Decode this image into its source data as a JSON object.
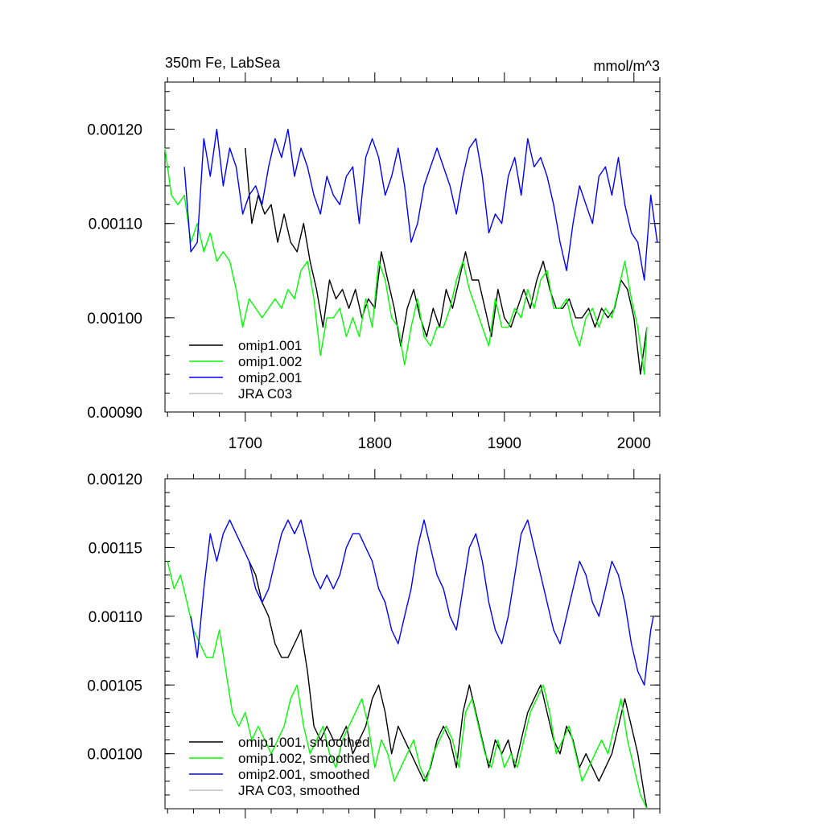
{
  "chart_data": [
    {
      "type": "line",
      "title": "350m Fe, LabSea",
      "units": "mmol/m^3",
      "xlim": [
        1638,
        2020
      ],
      "ylim": [
        0.0009,
        0.00125
      ],
      "yticks": [
        0.0009,
        0.001,
        0.0011,
        0.0012
      ],
      "yticklabels": [
        "0.00090",
        "0.00100",
        "0.00110",
        "0.00120"
      ],
      "xticks": [
        1700,
        1800,
        1900,
        2000
      ],
      "xticklabels": [
        "1700",
        "1800",
        "1900",
        "2000"
      ],
      "legend_position": "bottom-left",
      "series": [
        {
          "name": "omip1.001",
          "color": "#000000",
          "x": [
            1700,
            1705,
            1710,
            1715,
            1720,
            1725,
            1730,
            1735,
            1740,
            1745,
            1750,
            1755,
            1760,
            1765,
            1770,
            1775,
            1780,
            1785,
            1790,
            1795,
            1800,
            1805,
            1810,
            1815,
            1820,
            1825,
            1830,
            1835,
            1840,
            1845,
            1850,
            1855,
            1860,
            1865,
            1870,
            1875,
            1880,
            1885,
            1890,
            1895,
            1900,
            1905,
            1910,
            1915,
            1920,
            1925,
            1930,
            1935,
            1940,
            1945,
            1950,
            1955,
            1960,
            1965,
            1970,
            1975,
            1980,
            1985,
            1990,
            1995,
            2000,
            2005,
            2010
          ],
          "y": [
            0.00118,
            0.0011,
            0.00113,
            0.00111,
            0.00112,
            0.00108,
            0.00111,
            0.00108,
            0.00107,
            0.0011,
            0.00106,
            0.00103,
            0.00099,
            0.00104,
            0.00102,
            0.00103,
            0.00101,
            0.00103,
            0.001,
            0.00102,
            0.00101,
            0.00107,
            0.00104,
            0.00101,
            0.00097,
            0.00101,
            0.00103,
            0.001,
            0.00098,
            0.00101,
            0.00099,
            0.00103,
            0.00101,
            0.00104,
            0.00107,
            0.00104,
            0.00104,
            0.00101,
            0.00098,
            0.00103,
            0.001,
            0.00099,
            0.00101,
            0.00103,
            0.00101,
            0.00104,
            0.00106,
            0.00103,
            0.00101,
            0.00101,
            0.00102,
            0.001,
            0.001,
            0.00101,
            0.00099,
            0.00101,
            0.001,
            0.00101,
            0.00104,
            0.00103,
            0.001,
            0.00094,
            0.00099
          ]
        },
        {
          "name": "omip1.002",
          "color": "#00ff00",
          "x": [
            1638,
            1643,
            1648,
            1653,
            1658,
            1663,
            1668,
            1673,
            1678,
            1683,
            1688,
            1693,
            1698,
            1703,
            1708,
            1713,
            1718,
            1723,
            1728,
            1733,
            1738,
            1743,
            1748,
            1753,
            1758,
            1763,
            1768,
            1773,
            1778,
            1783,
            1788,
            1793,
            1798,
            1803,
            1808,
            1813,
            1818,
            1823,
            1828,
            1833,
            1838,
            1843,
            1848,
            1853,
            1858,
            1863,
            1868,
            1873,
            1878,
            1883,
            1888,
            1893,
            1898,
            1903,
            1908,
            1913,
            1918,
            1923,
            1928,
            1933,
            1938,
            1943,
            1948,
            1953,
            1958,
            1963,
            1968,
            1973,
            1978,
            1983,
            1988,
            1993,
            1998,
            2003,
            2008,
            2010
          ],
          "y": [
            0.00118,
            0.00113,
            0.00112,
            0.00113,
            0.00108,
            0.0011,
            0.00107,
            0.00109,
            0.00106,
            0.00107,
            0.00106,
            0.00103,
            0.00099,
            0.00102,
            0.00101,
            0.001,
            0.00101,
            0.00102,
            0.00101,
            0.00103,
            0.00102,
            0.00105,
            0.00106,
            0.00102,
            0.00096,
            0.001,
            0.001,
            0.00101,
            0.00098,
            0.001,
            0.00098,
            0.00102,
            0.00099,
            0.00106,
            0.00104,
            0.001,
            0.00099,
            0.00095,
            0.00099,
            0.00102,
            0.00098,
            0.00097,
            0.00099,
            0.00099,
            0.00101,
            0.00104,
            0.00106,
            0.00103,
            0.00101,
            0.00099,
            0.00097,
            0.00102,
            0.00099,
            0.00099,
            0.00101,
            0.001,
            0.00103,
            0.00101,
            0.00104,
            0.00105,
            0.00101,
            0.00101,
            0.00102,
            0.00099,
            0.00097,
            0.001,
            0.00101,
            0.00099,
            0.00101,
            0.001,
            0.00103,
            0.00106,
            0.00102,
            0.00099,
            0.00094,
            0.00099
          ]
        },
        {
          "name": "omip2.001",
          "color": "#0000ff",
          "x": [
            1653,
            1658,
            1663,
            1668,
            1673,
            1678,
            1683,
            1688,
            1693,
            1698,
            1703,
            1708,
            1713,
            1718,
            1723,
            1728,
            1733,
            1738,
            1743,
            1748,
            1753,
            1758,
            1763,
            1768,
            1773,
            1778,
            1783,
            1788,
            1793,
            1798,
            1803,
            1808,
            1813,
            1818,
            1823,
            1828,
            1833,
            1838,
            1843,
            1848,
            1853,
            1858,
            1863,
            1868,
            1873,
            1878,
            1883,
            1888,
            1893,
            1898,
            1903,
            1908,
            1913,
            1918,
            1923,
            1928,
            1933,
            1938,
            1943,
            1948,
            1953,
            1958,
            1963,
            1968,
            1973,
            1978,
            1983,
            1988,
            1993,
            1998,
            2003,
            2008,
            2013,
            2018
          ],
          "y": [
            0.00116,
            0.00107,
            0.00108,
            0.00119,
            0.00115,
            0.0012,
            0.00114,
            0.00118,
            0.00116,
            0.00111,
            0.00113,
            0.00114,
            0.00112,
            0.00116,
            0.00119,
            0.00117,
            0.0012,
            0.00115,
            0.00118,
            0.00116,
            0.00113,
            0.00111,
            0.00115,
            0.00113,
            0.00112,
            0.00115,
            0.00116,
            0.0011,
            0.00117,
            0.00119,
            0.00117,
            0.00113,
            0.00115,
            0.00118,
            0.00114,
            0.00108,
            0.0011,
            0.00114,
            0.00116,
            0.00118,
            0.00116,
            0.00114,
            0.00111,
            0.00115,
            0.00118,
            0.00119,
            0.00115,
            0.00109,
            0.00111,
            0.0011,
            0.00115,
            0.00117,
            0.00113,
            0.00119,
            0.00116,
            0.00117,
            0.00115,
            0.00112,
            0.00108,
            0.00105,
            0.0011,
            0.00114,
            0.00112,
            0.0011,
            0.00115,
            0.00116,
            0.00113,
            0.00117,
            0.00112,
            0.00109,
            0.00108,
            0.00104,
            0.00113,
            0.00108
          ]
        },
        {
          "name": "JRA C03",
          "color": "#c0c0c0",
          "x": [],
          "y": []
        }
      ]
    },
    {
      "type": "line",
      "xlim": [
        1638,
        2020
      ],
      "ylim": [
        0.00096,
        0.0012
      ],
      "yticks": [
        0.001,
        0.00105,
        0.0011,
        0.00115,
        0.0012
      ],
      "yticklabels": [
        "0.00100",
        "0.00105",
        "0.00110",
        "0.00115",
        "0.00120"
      ],
      "xticks": [
        1700,
        1800,
        1900,
        2000
      ],
      "xticklabels": [],
      "legend_position": "bottom-left",
      "series": [
        {
          "name": "omip1.001, smoothed",
          "color": "#000000",
          "x": [
            1703,
            1708,
            1713,
            1718,
            1723,
            1728,
            1733,
            1738,
            1743,
            1748,
            1753,
            1758,
            1763,
            1768,
            1773,
            1778,
            1783,
            1788,
            1793,
            1798,
            1803,
            1808,
            1813,
            1818,
            1823,
            1828,
            1833,
            1838,
            1843,
            1848,
            1853,
            1858,
            1863,
            1868,
            1873,
            1878,
            1883,
            1888,
            1893,
            1898,
            1903,
            1908,
            1913,
            1918,
            1923,
            1928,
            1933,
            1938,
            1943,
            1948,
            1953,
            1958,
            1963,
            1968,
            1973,
            1978,
            1983,
            1988,
            1993,
            1998,
            2003,
            2008,
            2010
          ],
          "y": [
            0.00114,
            0.00113,
            0.00111,
            0.0011,
            0.00108,
            0.00107,
            0.00107,
            0.00108,
            0.00109,
            0.00106,
            0.00102,
            0.00101,
            0.00102,
            0.00101,
            0.00101,
            0.00102,
            0.001,
            0.00101,
            0.00102,
            0.00104,
            0.00105,
            0.00103,
            0.001,
            0.00102,
            0.00101,
            0.001,
            0.00099,
            0.00098,
            0.00099,
            0.00101,
            0.00102,
            0.00101,
            0.00099,
            0.00103,
            0.00105,
            0.00103,
            0.00101,
            0.00099,
            0.00101,
            0.001,
            0.00101,
            0.00099,
            0.00101,
            0.00103,
            0.00104,
            0.00105,
            0.00103,
            0.00101,
            0.001,
            0.00102,
            0.00101,
            0.00099,
            0.001,
            0.00099,
            0.00098,
            0.00099,
            0.001,
            0.00102,
            0.00104,
            0.00102,
            0.001,
            0.00097,
            0.00096
          ]
        },
        {
          "name": "omip1.002, smoothed",
          "color": "#00ff00",
          "x": [
            1640,
            1645,
            1650,
            1655,
            1660,
            1665,
            1670,
            1675,
            1680,
            1685,
            1690,
            1695,
            1700,
            1705,
            1710,
            1715,
            1720,
            1725,
            1730,
            1735,
            1740,
            1745,
            1750,
            1755,
            1760,
            1765,
            1770,
            1775,
            1780,
            1785,
            1790,
            1795,
            1800,
            1805,
            1810,
            1815,
            1820,
            1825,
            1830,
            1835,
            1840,
            1845,
            1850,
            1855,
            1860,
            1865,
            1870,
            1875,
            1880,
            1885,
            1890,
            1895,
            1900,
            1905,
            1910,
            1915,
            1920,
            1925,
            1930,
            1935,
            1940,
            1945,
            1950,
            1955,
            1960,
            1965,
            1970,
            1975,
            1980,
            1985,
            1990,
            1995,
            2000,
            2005,
            2010
          ],
          "y": [
            0.00114,
            0.00112,
            0.00113,
            0.00111,
            0.00109,
            0.00108,
            0.00107,
            0.00107,
            0.00109,
            0.00106,
            0.00103,
            0.00102,
            0.00103,
            0.00101,
            0.00102,
            0.00101,
            0.001,
            0.00101,
            0.00102,
            0.00104,
            0.00105,
            0.00102,
            0.001,
            0.00101,
            0.00102,
            0.001,
            0.00099,
            0.00101,
            0.00102,
            0.00103,
            0.00104,
            0.00102,
            0.00099,
            0.00101,
            0.001,
            0.00098,
            0.00099,
            0.001,
            0.00101,
            0.00099,
            0.00098,
            0.001,
            0.00101,
            0.00102,
            0.00101,
            0.00099,
            0.00103,
            0.00104,
            0.00102,
            0.001,
            0.00099,
            0.00101,
            0.00099,
            0.001,
            0.00099,
            0.00101,
            0.00103,
            0.00104,
            0.00105,
            0.00103,
            0.001,
            0.00101,
            0.00102,
            0.001,
            0.00098,
            0.00099,
            0.001,
            0.00101,
            0.001,
            0.00102,
            0.00104,
            0.00101,
            0.00099,
            0.00097,
            0.00096
          ]
        },
        {
          "name": "omip2.001, smoothed",
          "color": "#0000ff",
          "x": [
            1658,
            1663,
            1668,
            1673,
            1678,
            1683,
            1688,
            1693,
            1698,
            1703,
            1708,
            1713,
            1718,
            1723,
            1728,
            1733,
            1738,
            1743,
            1748,
            1753,
            1758,
            1763,
            1768,
            1773,
            1778,
            1783,
            1788,
            1793,
            1798,
            1803,
            1808,
            1813,
            1818,
            1823,
            1828,
            1833,
            1838,
            1843,
            1848,
            1853,
            1858,
            1863,
            1868,
            1873,
            1878,
            1883,
            1888,
            1893,
            1898,
            1903,
            1908,
            1913,
            1918,
            1923,
            1928,
            1933,
            1938,
            1943,
            1948,
            1953,
            1958,
            1963,
            1968,
            1973,
            1978,
            1983,
            1988,
            1993,
            1998,
            2003,
            2008,
            2013,
            2015
          ],
          "y": [
            0.0011,
            0.00107,
            0.00112,
            0.00116,
            0.00114,
            0.00116,
            0.00117,
            0.00116,
            0.00115,
            0.00114,
            0.00112,
            0.00111,
            0.00112,
            0.00114,
            0.00116,
            0.00117,
            0.00116,
            0.00117,
            0.00115,
            0.00113,
            0.00112,
            0.00113,
            0.00112,
            0.00113,
            0.00115,
            0.00116,
            0.00116,
            0.00115,
            0.00114,
            0.00112,
            0.00111,
            0.00109,
            0.00108,
            0.0011,
            0.00112,
            0.00115,
            0.00117,
            0.00115,
            0.00113,
            0.00112,
            0.0011,
            0.00109,
            0.00112,
            0.00115,
            0.00116,
            0.00114,
            0.00111,
            0.00109,
            0.00108,
            0.0011,
            0.00113,
            0.00116,
            0.00117,
            0.00115,
            0.00113,
            0.00111,
            0.00109,
            0.00108,
            0.0011,
            0.00112,
            0.00114,
            0.00113,
            0.00111,
            0.0011,
            0.00112,
            0.00114,
            0.00113,
            0.00111,
            0.00108,
            0.00106,
            0.00105,
            0.00109,
            0.0011
          ]
        },
        {
          "name": "JRA C03, smoothed",
          "color": "#c0c0c0",
          "x": [],
          "y": []
        }
      ]
    }
  ]
}
